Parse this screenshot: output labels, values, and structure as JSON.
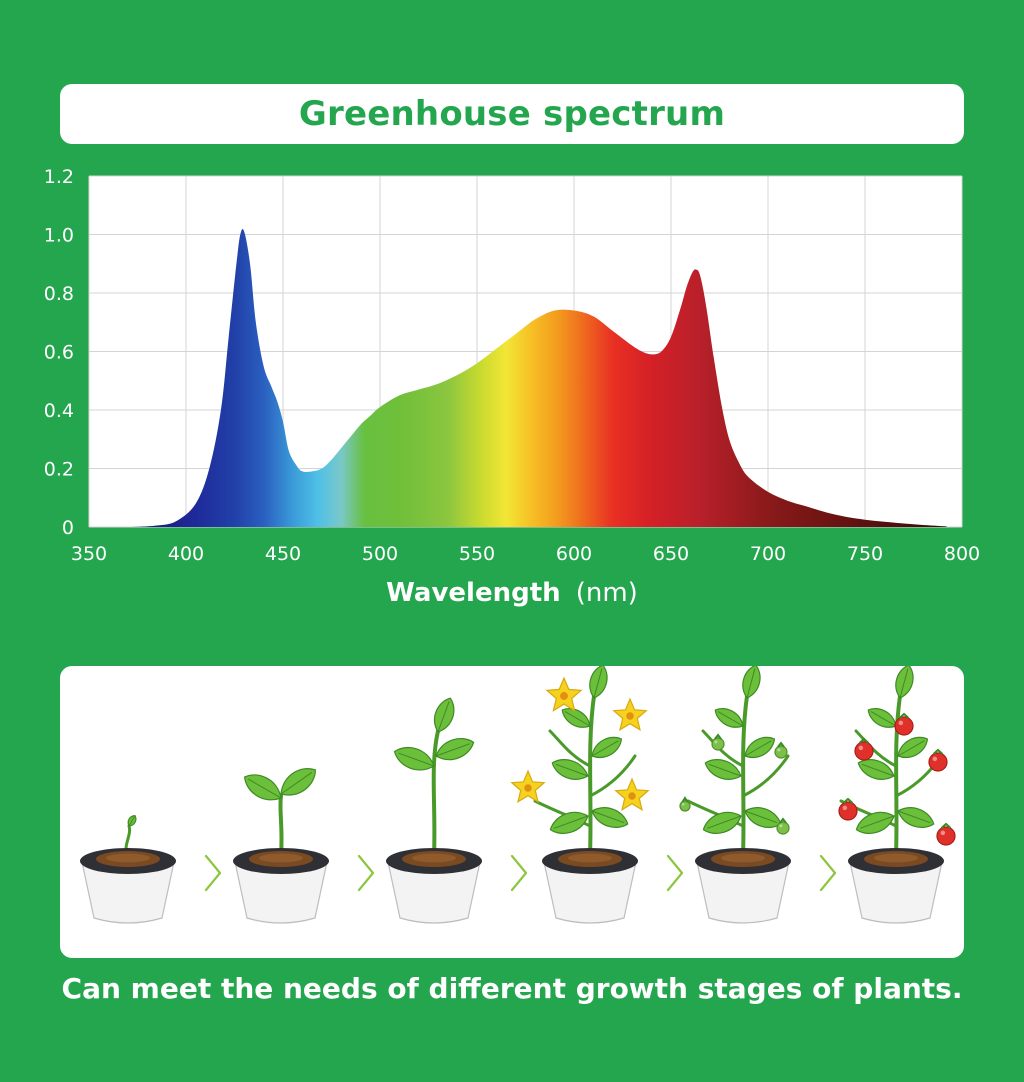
{
  "header": {
    "title": "Greenhouse spectrum"
  },
  "chart_data": {
    "type": "area",
    "title": "Greenhouse spectrum",
    "xlabel": "Wavelength",
    "xlabel_unit": "(nm)",
    "ylabel": "",
    "xlim": [
      350,
      800
    ],
    "ylim": [
      0,
      1.2
    ],
    "xticks": [
      "350",
      "400",
      "450",
      "500",
      "550",
      "600",
      "650",
      "700",
      "750",
      "800"
    ],
    "yticks": [
      "0",
      "0.2",
      "0.4",
      "0.6",
      "0.8",
      "1.0",
      "1.2"
    ],
    "grid": true,
    "fill": "wavelength-colored spectrum",
    "series": [
      {
        "x": [
          372,
          385,
          395,
          405,
          412,
          418,
          422,
          426,
          428,
          430,
          433,
          436,
          440,
          444,
          447,
          450,
          453,
          457,
          460,
          465,
          470,
          475,
          480,
          485,
          490,
          495,
          500,
          510,
          520,
          530,
          540,
          550,
          560,
          570,
          580,
          590,
          600,
          610,
          620,
          630,
          635,
          640,
          645,
          650,
          655,
          658,
          661,
          663,
          665,
          668,
          672,
          676,
          680,
          685,
          690,
          700,
          710,
          720,
          730,
          740,
          750,
          760,
          770,
          780,
          792
        ],
        "y": [
          0,
          0.005,
          0.02,
          0.08,
          0.2,
          0.4,
          0.65,
          0.9,
          1.0,
          1.01,
          0.9,
          0.7,
          0.55,
          0.48,
          0.43,
          0.36,
          0.26,
          0.21,
          0.19,
          0.19,
          0.2,
          0.23,
          0.27,
          0.31,
          0.35,
          0.38,
          0.41,
          0.45,
          0.47,
          0.49,
          0.52,
          0.56,
          0.61,
          0.66,
          0.71,
          0.74,
          0.74,
          0.72,
          0.67,
          0.62,
          0.6,
          0.59,
          0.6,
          0.65,
          0.75,
          0.82,
          0.87,
          0.88,
          0.86,
          0.76,
          0.58,
          0.42,
          0.3,
          0.22,
          0.17,
          0.12,
          0.09,
          0.07,
          0.05,
          0.035,
          0.025,
          0.018,
          0.012,
          0.007,
          0.002
        ]
      }
    ]
  },
  "stages": {
    "items": [
      "sprout",
      "seedling",
      "young-plant",
      "flowering",
      "fruit-set",
      "ripe-fruit"
    ],
    "colors": {
      "pot": "#f3f3f3",
      "rim": "#2f2f36",
      "soil": "#7a4a22",
      "leaf": "#6cbf3a",
      "stem": "#4a9a2a",
      "flower": "#f5d21e",
      "green_fruit": "#7cc04a",
      "red_fruit": "#e0302a",
      "arrow": "#8cc63f"
    }
  },
  "caption": "Can meet the needs of different growth stages of plants."
}
